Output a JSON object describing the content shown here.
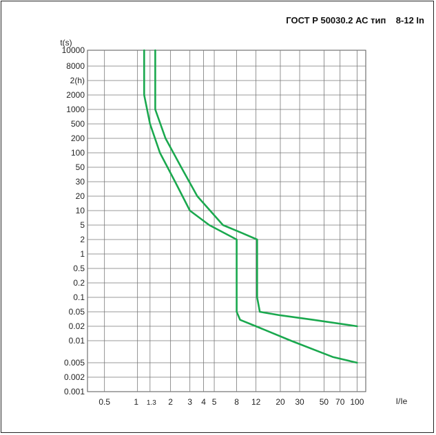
{
  "chart_data": {
    "type": "line",
    "title": "ГОСТ Р 50030.2 АС тип    8-12 In",
    "xlabel": "I/Ie",
    "ylabel": "t(s)",
    "grid": true,
    "x_ticks": [
      {
        "value": 0.5,
        "label": "0.5"
      },
      {
        "value": 1,
        "label": "1"
      },
      {
        "value": 1.3,
        "label": "1.3"
      },
      {
        "value": 2,
        "label": "2"
      },
      {
        "value": 3,
        "label": "3"
      },
      {
        "value": 4,
        "label": "4"
      },
      {
        "value": 5,
        "label": "5"
      },
      {
        "value": 8,
        "label": "8"
      },
      {
        "value": 12,
        "label": "12"
      },
      {
        "value": 20,
        "label": "20"
      },
      {
        "value": 30,
        "label": "30"
      },
      {
        "value": 50,
        "label": "50"
      },
      {
        "value": 70,
        "label": "70"
      },
      {
        "value": 100,
        "label": "100"
      }
    ],
    "y_ticks": [
      "0.001",
      "0.002",
      "0.005",
      "0.01",
      "0.02",
      "0.05",
      "0.1",
      "0.2",
      "0.5",
      "1",
      "2",
      "5",
      "10",
      "20",
      "30",
      "50",
      "100",
      "200",
      "500",
      "1000",
      "2000",
      "2(h)",
      "8000",
      "10000"
    ],
    "series": [
      {
        "color": "#1aa84e",
        "points": [
          [
            1.15,
            10000
          ],
          [
            1.15,
            2000
          ],
          [
            1.3,
            500
          ],
          [
            1.6,
            100
          ],
          [
            2.2,
            30
          ],
          [
            3.0,
            10
          ],
          [
            4.5,
            5
          ],
          [
            8,
            2
          ],
          [
            8,
            0.05
          ],
          [
            8.6,
            0.03
          ],
          [
            12,
            0.02
          ],
          [
            25,
            0.01
          ],
          [
            60,
            0.006
          ],
          [
            100,
            0.005
          ]
        ]
      },
      {
        "color": "#1aa84e",
        "points": [
          [
            1.45,
            10000
          ],
          [
            1.45,
            1000
          ],
          [
            1.8,
            200
          ],
          [
            2.5,
            50
          ],
          [
            3.5,
            20
          ],
          [
            6,
            5
          ],
          [
            9,
            3
          ],
          [
            12.3,
            2
          ],
          [
            12.3,
            0.1
          ],
          [
            13,
            0.05
          ],
          [
            20,
            0.04
          ],
          [
            40,
            0.03
          ],
          [
            100,
            0.02
          ]
        ]
      }
    ]
  }
}
